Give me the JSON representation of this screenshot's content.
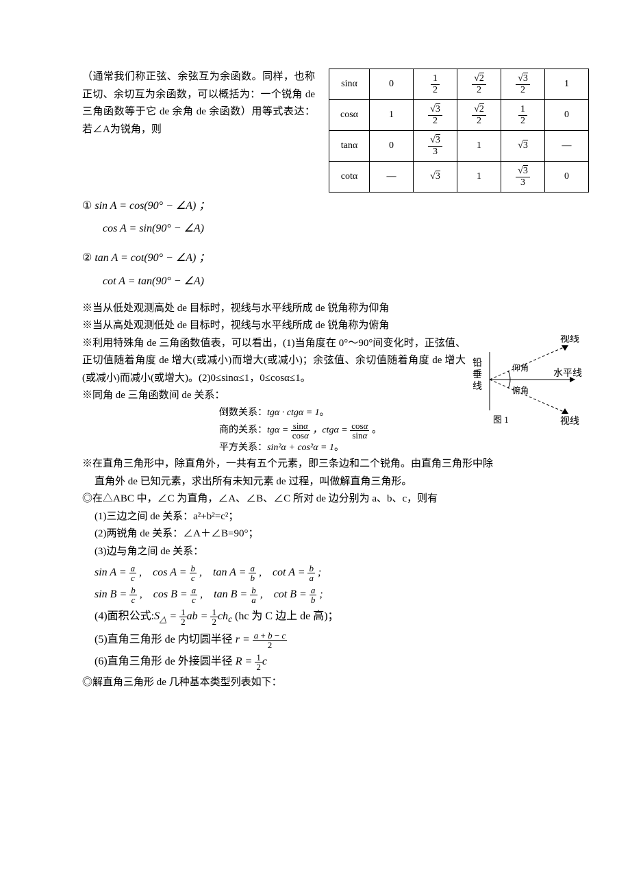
{
  "intro": "（通常我们称正弦、余弦互为余函数。同样，也称正切、余切互为余函数，可以概括为：一个锐角 de 三角函数等于它 de 余角 de 余函数）用等式表达：若∠A为锐角，则",
  "eq1_label": "①",
  "eq1a": "sin A = cos(90° − ∠A) ；",
  "eq1b": "cos A = sin(90° − ∠A)",
  "eq2_label": "②",
  "eq2a": "tan A = cot(90° − ∠A) ；",
  "eq2b": "cot A = tan(90° − ∠A)",
  "table": {
    "rows": [
      {
        "fn": "sinα",
        "v0": "0",
        "v1": {
          "num": "1",
          "den": "2"
        },
        "v2": {
          "num": "√2",
          "den": "2",
          "sqrt": true
        },
        "v3": {
          "num": "√3",
          "den": "2",
          "sqrt": true
        },
        "v4": "1"
      },
      {
        "fn": "cosα",
        "v0": "1",
        "v1": {
          "num": "√3",
          "den": "2",
          "sqrt": true
        },
        "v2": {
          "num": "√2",
          "den": "2",
          "sqrt": true
        },
        "v3": {
          "num": "1",
          "den": "2"
        },
        "v4": "0"
      },
      {
        "fn": "tanα",
        "v0": "0",
        "v1": {
          "num": "√3",
          "den": "3",
          "sqrt": true
        },
        "v2": "1",
        "v3": "√3_plain",
        "v4": "—"
      },
      {
        "fn": "cotα",
        "v0": "—",
        "v1": "√3_plain",
        "v2": "1",
        "v3": {
          "num": "√3",
          "den": "3",
          "sqrt": true
        },
        "v4": "0"
      }
    ]
  },
  "note1": "※当从低处观测高处 de 目标时，视线与水平线所成 de 锐角称为仰角",
  "note2": "※当从高处观测低处 de 目标时，视线与水平线所成 de 锐角称为俯角",
  "note3": "※利用特殊角 de 三角函数值表，可以看出，(1)当角度在 0°～90°间变化时，正弦值、正切值随着角度 de 增大(或减小)而增大(或减小)；余弦值、余切值随着角度 de 增大(或减小)而减小(或增大)。(2)0≤sinα≤1，0≤cosα≤1。",
  "note4": "※同角 de 三角函数间 de 关系：",
  "rel_inv_label": "倒数关系：",
  "rel_inv": "tgα·ctgα=1。",
  "rel_quot_label": "商的关系：",
  "rel_sq_label": "平方关系：",
  "rel_sq": "sin²α + cos²α = 1。",
  "diagram": {
    "labels": {
      "plumb": "铅垂线",
      "sight": "视线",
      "horiz": "水平线",
      "elev": "仰角",
      "depr": "俯角",
      "fig": "图 1"
    }
  },
  "note5a": "※在直角三角形中，除直角外，一共有五个元素，即三条边和二个锐角。由直角三角形中除",
  "note5b": "直角外 de 已知元素，求出所有未知元素 de 过程，叫做解直角三角形。",
  "note6": "◎在△ABC 中，∠C 为直角，∠A、∠B、∠C 所对 de 边分别为 a、b、c，则有",
  "item1": "(1)三边之间 de 关系：a²+b²=c²；",
  "item2": "(2)两锐角 de 关系：∠A＋∠B=90°；",
  "item3": "(3)边与角之间 de 关系：",
  "item4_pre": "(4)面积公式:",
  "item4_post": "(hc 为 C 边上 de 高)；",
  "item5": "(5)直角三角形 de 内切圆半径",
  "item6": "(6)直角三角形 de 外接圆半径",
  "note7": "◎解直角三角形 de 几种基本类型列表如下："
}
